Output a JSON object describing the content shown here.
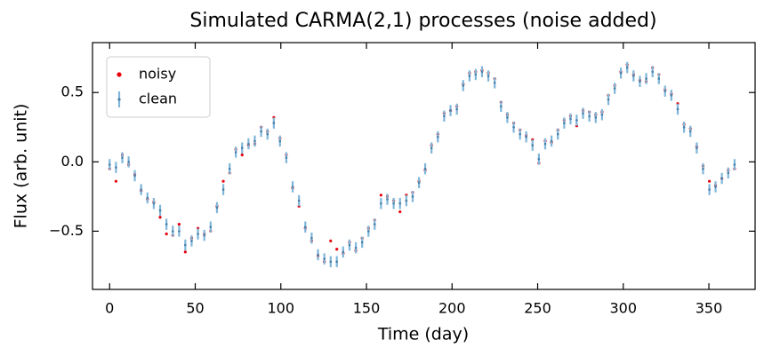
{
  "chart_data": {
    "type": "scatter",
    "title": "Simulated CARMA(2,1) processes (noise added)",
    "xlabel": "Time (day)",
    "ylabel": "Flux (arb. unit)",
    "x": [
      0,
      3.7,
      7.4,
      11.1,
      14.7,
      18.4,
      22.1,
      25.8,
      29.5,
      33.2,
      36.9,
      40.6,
      44.2,
      47.9,
      51.6,
      55.3,
      59.0,
      62.7,
      66.4,
      70.1,
      73.7,
      77.4,
      81.1,
      84.8,
      88.5,
      92.2,
      95.9,
      99.5,
      103.2,
      106.9,
      110.6,
      114.3,
      118.0,
      121.7,
      125.4,
      129.1,
      132.7,
      136.4,
      140.1,
      143.8,
      147.5,
      151.2,
      154.8,
      158.5,
      162.2,
      165.9,
      169.6,
      173.3,
      177.0,
      180.7,
      184.3,
      188.0,
      191.7,
      195.4,
      199.1,
      202.8,
      206.5,
      210.2,
      213.8,
      217.5,
      221.2,
      224.9,
      228.6,
      232.3,
      236.0,
      239.7,
      243.3,
      247.0,
      250.7,
      254.4,
      258.1,
      261.8,
      265.5,
      269.2,
      272.8,
      276.5,
      280.2,
      283.9,
      287.6,
      291.3,
      295.0,
      298.6,
      302.3,
      306.0,
      309.7,
      313.4,
      317.1,
      320.8,
      324.4,
      328.1,
      331.8,
      335.5,
      339.2,
      342.9,
      346.6,
      350.3,
      353.9,
      357.6,
      361.3,
      365.0
    ],
    "series": [
      {
        "name": "noisy",
        "color": "#e8000b",
        "values": [
          -0.05,
          -0.14,
          0.05,
          -0.02,
          -0.09,
          -0.21,
          -0.27,
          -0.29,
          -0.4,
          -0.52,
          -0.53,
          -0.45,
          -0.65,
          -0.55,
          -0.48,
          -0.52,
          -0.5,
          -0.32,
          -0.14,
          -0.08,
          0.09,
          0.05,
          0.12,
          0.13,
          0.25,
          0.22,
          0.32,
          0.17,
          0.05,
          -0.19,
          -0.32,
          -0.48,
          -0.57,
          -0.68,
          -0.72,
          -0.57,
          -0.63,
          -0.66,
          -0.58,
          -0.64,
          -0.55,
          -0.48,
          -0.42,
          -0.24,
          -0.25,
          -0.28,
          -0.36,
          -0.24,
          -0.22,
          -0.14,
          -0.06,
          0.12,
          0.2,
          0.35,
          0.37,
          0.4,
          0.56,
          0.64,
          0.65,
          0.66,
          0.64,
          0.6,
          0.43,
          0.34,
          0.28,
          0.23,
          0.19,
          0.16,
          -0.01,
          0.15,
          0.14,
          0.23,
          0.3,
          0.33,
          0.26,
          0.37,
          0.36,
          0.34,
          0.36,
          0.48,
          0.55,
          0.65,
          0.7,
          0.63,
          0.59,
          0.58,
          0.68,
          0.63,
          0.52,
          0.49,
          0.42,
          0.27,
          0.24,
          0.11,
          -0.03,
          -0.14,
          -0.17,
          -0.12,
          -0.06,
          -0.05
        ]
      },
      {
        "name": "clean",
        "color": "#7fb6d9",
        "yerr": 0.04,
        "values": [
          -0.02,
          -0.04,
          0.03,
          0.0,
          -0.1,
          -0.2,
          -0.26,
          -0.3,
          -0.35,
          -0.45,
          -0.5,
          -0.5,
          -0.6,
          -0.57,
          -0.52,
          -0.53,
          -0.47,
          -0.33,
          -0.2,
          -0.05,
          0.07,
          0.1,
          0.13,
          0.15,
          0.22,
          0.2,
          0.28,
          0.15,
          0.03,
          -0.18,
          -0.28,
          -0.47,
          -0.55,
          -0.67,
          -0.7,
          -0.72,
          -0.72,
          -0.65,
          -0.6,
          -0.62,
          -0.58,
          -0.5,
          -0.45,
          -0.3,
          -0.27,
          -0.3,
          -0.3,
          -0.28,
          -0.25,
          -0.15,
          -0.05,
          0.1,
          0.18,
          0.33,
          0.37,
          0.38,
          0.55,
          0.62,
          0.63,
          0.65,
          0.62,
          0.57,
          0.4,
          0.32,
          0.25,
          0.2,
          0.18,
          0.12,
          0.02,
          0.13,
          0.15,
          0.2,
          0.28,
          0.31,
          0.3,
          0.35,
          0.33,
          0.32,
          0.34,
          0.45,
          0.53,
          0.64,
          0.68,
          0.62,
          0.58,
          0.6,
          0.65,
          0.6,
          0.51,
          0.48,
          0.38,
          0.25,
          0.22,
          0.1,
          -0.05,
          -0.2,
          -0.18,
          -0.12,
          -0.08,
          -0.02
        ]
      }
    ],
    "xlim": [
      -10,
      377
    ],
    "ylim": [
      -0.92,
      0.86
    ],
    "xticks": [
      0,
      50,
      100,
      150,
      200,
      250,
      300,
      350
    ],
    "yticks": [
      {
        "value": -0.5,
        "label": "−0.5"
      },
      {
        "value": 0,
        "label": "0.0"
      },
      {
        "value": 0.5,
        "label": "0.5"
      }
    ],
    "legend": "upper left"
  }
}
